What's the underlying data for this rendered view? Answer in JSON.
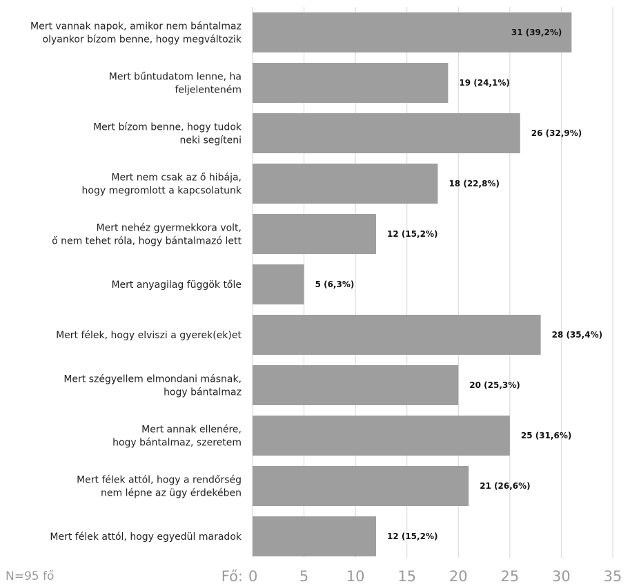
{
  "note": "N=95 fő",
  "chart_data": {
    "type": "bar",
    "orientation": "horizontal",
    "x_axis_prefix": "Fő:",
    "xlim": [
      0,
      35
    ],
    "xticks": [
      0,
      5,
      10,
      15,
      20,
      25,
      30,
      35
    ],
    "grid": true,
    "categories": [
      [
        "Mert vannak napok, amikor nem bántalmaz",
        "olyankor bízom benne, hogy megváltozik"
      ],
      [
        "Mert bűntudatom lenne, ha",
        "feljelenteném"
      ],
      [
        "Mert bízom benne, hogy tudok",
        "neki segíteni"
      ],
      [
        "Mert nem csak az ő hibája,",
        "hogy megromlott a kapcsolatunk"
      ],
      [
        "Mert nehéz gyermekkora volt,",
        "ő nem tehet róla, hogy bántalmazó lett"
      ],
      [
        "Mert anyagilag függök tőle"
      ],
      [
        "Mert félek, hogy elviszi a gyerek(ek)et"
      ],
      [
        "Mert szégyellem elmondani másnak,",
        "hogy bántalmaz"
      ],
      [
        "Mert annak ellenére,",
        "hogy bántalmaz, szeretem"
      ],
      [
        "Mert félek attól, hogy a rendőrség",
        "nem lépne az ügy érdekében"
      ],
      [
        "Mert félek attól, hogy egyedül maradok"
      ]
    ],
    "values": [
      31,
      19,
      26,
      18,
      12,
      5,
      28,
      20,
      25,
      21,
      12
    ],
    "data_labels": [
      "31 (39,2%)",
      "19 (24,1%)",
      "26 (32,9%)",
      "18 (22,8%)",
      "12 (15,2%)",
      "5 (6,3%)",
      "28 (35,4%)",
      "20 (25,3%)",
      "25 (31,6%)",
      "21 (26,6%)",
      "12 (15,2%)"
    ],
    "bar_color": "#9e9e9e"
  }
}
